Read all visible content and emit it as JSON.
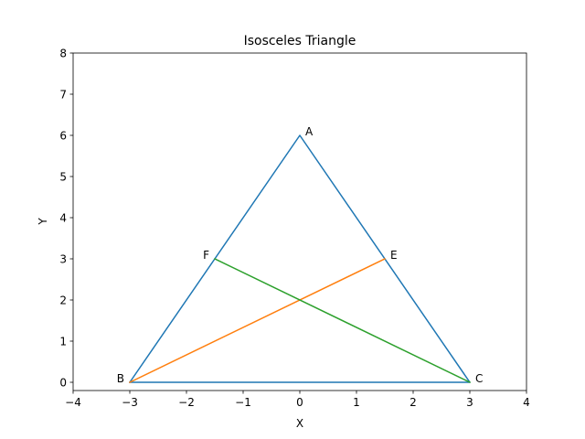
{
  "chart_data": {
    "type": "line",
    "title": "Isosceles Triangle",
    "xlabel": "X",
    "ylabel": "Y",
    "xlim": [
      -4,
      4
    ],
    "ylim": [
      -0.2,
      8
    ],
    "xticks": [
      -4,
      -3,
      -2,
      -1,
      0,
      1,
      2,
      3,
      4
    ],
    "xtick_labels": [
      "−4",
      "−3",
      "−2",
      "−1",
      "0",
      "1",
      "2",
      "3",
      "4"
    ],
    "yticks": [
      0,
      1,
      2,
      3,
      4,
      5,
      6,
      7,
      8
    ],
    "ytick_labels": [
      "0",
      "1",
      "2",
      "3",
      "4",
      "5",
      "6",
      "7",
      "8"
    ],
    "grid": false,
    "series": [
      {
        "id": "triangle",
        "color": "#1f77b4",
        "x": [
          -3,
          0,
          3,
          -3
        ],
        "y": [
          0,
          6,
          0,
          0
        ]
      },
      {
        "id": "median-BE",
        "color": "#ff7f0e",
        "x": [
          -3,
          1.5
        ],
        "y": [
          0,
          3
        ]
      },
      {
        "id": "median-CF",
        "color": "#2ca02c",
        "x": [
          3,
          -1.5
        ],
        "y": [
          0,
          3
        ]
      }
    ],
    "annotations": [
      {
        "text": "A",
        "x": 0,
        "y": 6,
        "anchor": "start"
      },
      {
        "text": "B",
        "x": -3,
        "y": 0,
        "anchor": "end"
      },
      {
        "text": "C",
        "x": 3,
        "y": 0,
        "anchor": "start"
      },
      {
        "text": "E",
        "x": 1.5,
        "y": 3,
        "anchor": "start"
      },
      {
        "text": "F",
        "x": -1.5,
        "y": 3,
        "anchor": "end"
      }
    ]
  }
}
